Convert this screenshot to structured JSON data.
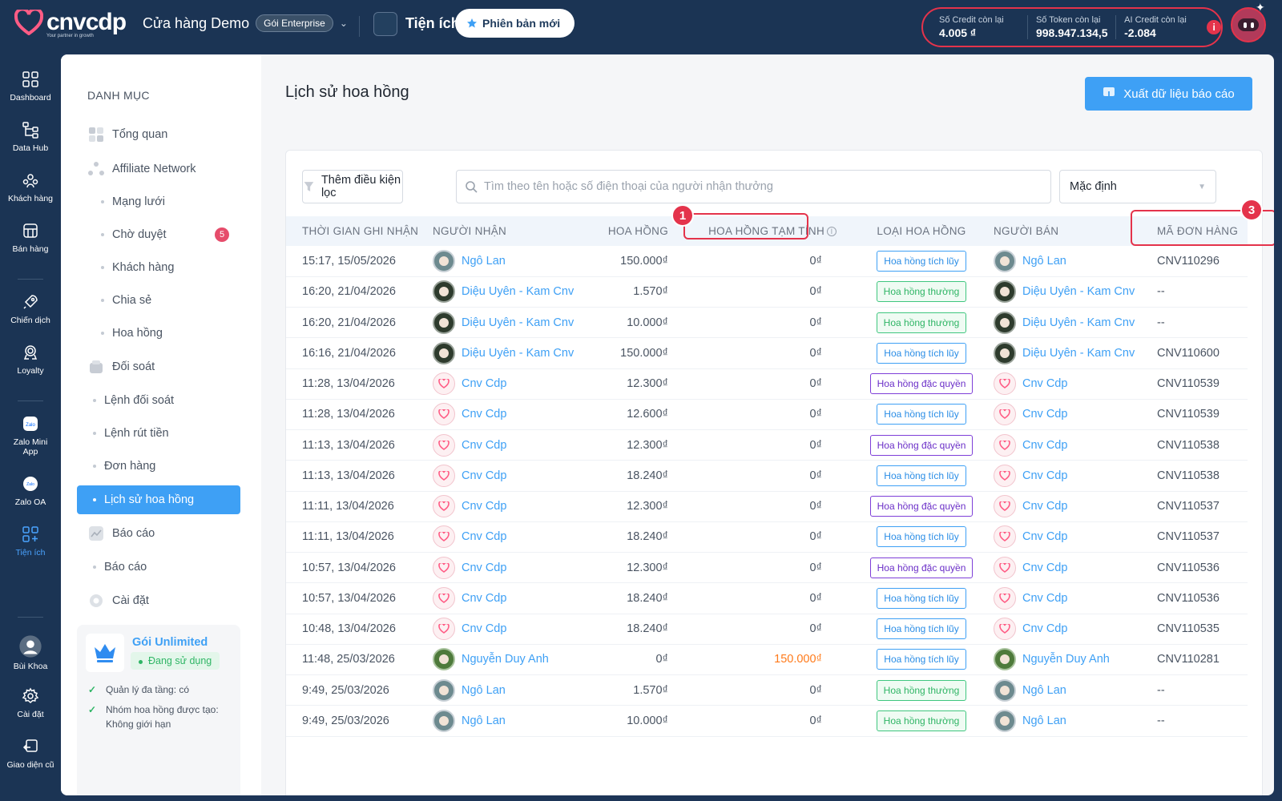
{
  "header": {
    "brand": "cnvcdp",
    "slogan": "Your partner in growth",
    "store_name": "Cửa hàng Demo",
    "plan_badge": "Gói Enterprise",
    "utilities_label": "Tiện ích",
    "new_version_label": "Phiên bản mới",
    "credits": [
      {
        "label": "Số Credit còn lại",
        "value": "4.005 ₫"
      },
      {
        "label": "Số Token còn lại",
        "value": "998.947.134,5"
      },
      {
        "label": "AI Credit còn lại",
        "value": "-2.084"
      }
    ],
    "colors": {
      "bar": "#1b3454",
      "alert": "#e4334b",
      "accent": "#3ea0f5"
    }
  },
  "rail": {
    "items": [
      {
        "label": "Dashboard",
        "icon": "grid-icon"
      },
      {
        "label": "Data Hub",
        "icon": "hierarchy-icon"
      },
      {
        "label": "Khách hàng",
        "icon": "users-icon"
      },
      {
        "label": "Bán hàng",
        "icon": "store-icon"
      },
      {
        "label": "Chiến dịch",
        "icon": "rocket-icon"
      },
      {
        "label": "Loyalty",
        "icon": "award-icon"
      },
      {
        "label": "Zalo Mini App",
        "icon": "zalo-icon"
      },
      {
        "label": "Zalo OA",
        "icon": "zalo-oa-icon"
      },
      {
        "label": "Tiện ích",
        "icon": "apps-add-icon"
      },
      {
        "label": "Bùi Khoa",
        "icon": "user-avatar-icon"
      },
      {
        "label": "Cài đặt",
        "icon": "gear-icon"
      },
      {
        "label": "Giao diện cũ",
        "icon": "back-icon"
      }
    ]
  },
  "catalog": {
    "title": "DANH MỤC",
    "items": [
      {
        "label": "Tổng quan"
      },
      {
        "label": "Affiliate Network"
      },
      {
        "label": "Mạng lưới"
      },
      {
        "label": "Chờ duyệt",
        "badge": "5"
      },
      {
        "label": "Khách hàng"
      },
      {
        "label": "Chia sẻ"
      },
      {
        "label": "Hoa hồng"
      },
      {
        "label": "Đối soát"
      },
      {
        "label": "Lệnh đối soát"
      },
      {
        "label": "Lệnh rút tiền"
      },
      {
        "label": "Đơn hàng"
      },
      {
        "label": "Lịch sử hoa hồng"
      },
      {
        "label": "Báo cáo"
      },
      {
        "label": "Báo cáo"
      },
      {
        "label": "Cài đặt"
      }
    ],
    "plan": {
      "name": "Gói Unlimited",
      "status": "Đang sử dụng",
      "features": [
        "Quản lý đa tầng: có",
        "Nhóm hoa hồng được tạo: Không giới hạn"
      ]
    }
  },
  "page": {
    "title": "Lịch sử hoa hồng",
    "export_label": "Xuất dữ liệu báo cáo",
    "filter_label": "Thêm điều kiện lọc",
    "search_placeholder": "Tìm theo tên hoặc số điện thoại của người nhận thưởng",
    "sort_value": "Mặc định"
  },
  "table": {
    "headers": [
      "Thời gian ghi nhận",
      "Người nhận",
      "Hoa hồng",
      "Hoa hồng tạm tính",
      "Loại hoa hồng",
      "Người bán",
      "Mã đơn hàng"
    ],
    "rows": [
      {
        "time": "15:17, 15/05/2026",
        "recipient": "Ngô Lan",
        "ravatar": "ngo",
        "commission": "150.000₫",
        "temp": "0₫",
        "temp_orange": false,
        "type": "Hoa hồng tích lũy",
        "tkind": "tich",
        "seller": "Ngô Lan",
        "savatar": "ngo",
        "order": "CNV110296"
      },
      {
        "time": "16:20, 21/04/2026",
        "recipient": "Diệu Uyên - Kam Cnv",
        "ravatar": "dieu",
        "commission": "1.570₫",
        "temp": "0₫",
        "temp_orange": false,
        "type": "Hoa hồng thường",
        "tkind": "thuong",
        "seller": "Diệu Uyên - Kam Cnv",
        "savatar": "dieu",
        "order": "--"
      },
      {
        "time": "16:20, 21/04/2026",
        "recipient": "Diệu Uyên - Kam Cnv",
        "ravatar": "dieu",
        "commission": "10.000₫",
        "temp": "0₫",
        "temp_orange": false,
        "type": "Hoa hồng thường",
        "tkind": "thuong",
        "seller": "Diệu Uyên - Kam Cnv",
        "savatar": "dieu",
        "order": "--"
      },
      {
        "time": "16:16, 21/04/2026",
        "recipient": "Diệu Uyên - Kam Cnv",
        "ravatar": "dieu",
        "commission": "150.000₫",
        "temp": "0₫",
        "temp_orange": false,
        "type": "Hoa hồng tích lũy",
        "tkind": "tich",
        "seller": "Diệu Uyên - Kam Cnv",
        "savatar": "dieu",
        "order": "CNV110600"
      },
      {
        "time": "11:28, 13/04/2026",
        "recipient": "Cnv Cdp",
        "ravatar": "cnv",
        "commission": "12.300₫",
        "temp": "0₫",
        "temp_orange": false,
        "type": "Hoa hồng đặc quyền",
        "tkind": "dac",
        "seller": "Cnv Cdp",
        "savatar": "cnv",
        "order": "CNV110539"
      },
      {
        "time": "11:28, 13/04/2026",
        "recipient": "Cnv Cdp",
        "ravatar": "cnv",
        "commission": "12.600₫",
        "temp": "0₫",
        "temp_orange": false,
        "type": "Hoa hồng tích lũy",
        "tkind": "tich",
        "seller": "Cnv Cdp",
        "savatar": "cnv",
        "order": "CNV110539"
      },
      {
        "time": "11:13, 13/04/2026",
        "recipient": "Cnv Cdp",
        "ravatar": "cnv",
        "commission": "12.300₫",
        "temp": "0₫",
        "temp_orange": false,
        "type": "Hoa hồng đặc quyền",
        "tkind": "dac",
        "seller": "Cnv Cdp",
        "savatar": "cnv",
        "order": "CNV110538"
      },
      {
        "time": "11:13, 13/04/2026",
        "recipient": "Cnv Cdp",
        "ravatar": "cnv",
        "commission": "18.240₫",
        "temp": "0₫",
        "temp_orange": false,
        "type": "Hoa hồng tích lũy",
        "tkind": "tich",
        "seller": "Cnv Cdp",
        "savatar": "cnv",
        "order": "CNV110538"
      },
      {
        "time": "11:11, 13/04/2026",
        "recipient": "Cnv Cdp",
        "ravatar": "cnv",
        "commission": "12.300₫",
        "temp": "0₫",
        "temp_orange": false,
        "type": "Hoa hồng đặc quyền",
        "tkind": "dac",
        "seller": "Cnv Cdp",
        "savatar": "cnv",
        "order": "CNV110537"
      },
      {
        "time": "11:11, 13/04/2026",
        "recipient": "Cnv Cdp",
        "ravatar": "cnv",
        "commission": "18.240₫",
        "temp": "0₫",
        "temp_orange": false,
        "type": "Hoa hồng tích lũy",
        "tkind": "tich",
        "seller": "Cnv Cdp",
        "savatar": "cnv",
        "order": "CNV110537"
      },
      {
        "time": "10:57, 13/04/2026",
        "recipient": "Cnv Cdp",
        "ravatar": "cnv",
        "commission": "12.300₫",
        "temp": "0₫",
        "temp_orange": false,
        "type": "Hoa hồng đặc quyền",
        "tkind": "dac",
        "seller": "Cnv Cdp",
        "savatar": "cnv",
        "order": "CNV110536"
      },
      {
        "time": "10:57, 13/04/2026",
        "recipient": "Cnv Cdp",
        "ravatar": "cnv",
        "commission": "18.240₫",
        "temp": "0₫",
        "temp_orange": false,
        "type": "Hoa hồng tích lũy",
        "tkind": "tich",
        "seller": "Cnv Cdp",
        "savatar": "cnv",
        "order": "CNV110536"
      },
      {
        "time": "10:48, 13/04/2026",
        "recipient": "Cnv Cdp",
        "ravatar": "cnv",
        "commission": "18.240₫",
        "temp": "0₫",
        "temp_orange": false,
        "type": "Hoa hồng tích lũy",
        "tkind": "tich",
        "seller": "Cnv Cdp",
        "savatar": "cnv",
        "order": "CNV110535"
      },
      {
        "time": "11:48, 25/03/2026",
        "recipient": "Nguyễn Duy Anh",
        "ravatar": "duy",
        "commission": "0₫",
        "temp": "150.000₫",
        "temp_orange": true,
        "type": "Hoa hồng tích lũy",
        "tkind": "tich",
        "seller": "Nguyễn Duy Anh",
        "savatar": "duy",
        "order": "CNV110281"
      },
      {
        "time": "9:49, 25/03/2026",
        "recipient": "Ngô Lan",
        "ravatar": "ngo",
        "commission": "1.570₫",
        "temp": "0₫",
        "temp_orange": false,
        "type": "Hoa hồng thường",
        "tkind": "thuong",
        "seller": "Ngô Lan",
        "savatar": "ngo",
        "order": "--"
      },
      {
        "time": "9:49, 25/03/2026",
        "recipient": "Ngô Lan",
        "ravatar": "ngo",
        "commission": "10.000₫",
        "temp": "0₫",
        "temp_orange": false,
        "type": "Hoa hồng thường",
        "tkind": "thuong",
        "seller": "Ngô Lan",
        "savatar": "ngo",
        "order": "--"
      }
    ]
  },
  "annotations": [
    {
      "number": "1"
    },
    {
      "number": "3"
    }
  ]
}
